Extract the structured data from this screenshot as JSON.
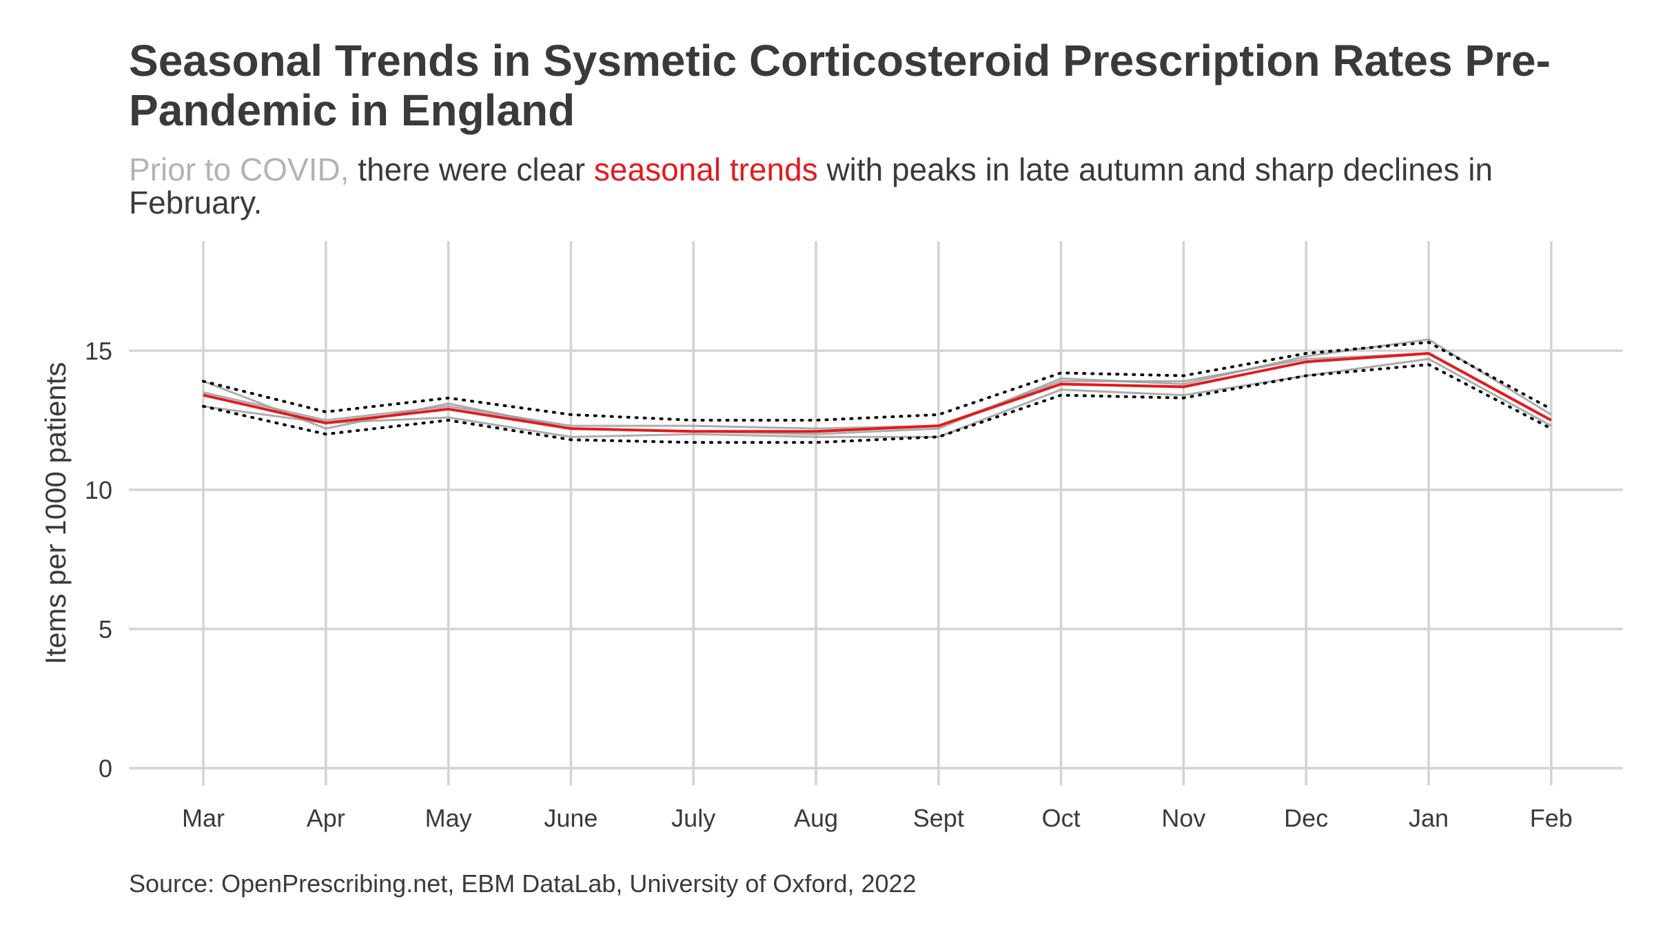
{
  "title": "Seasonal Trends in Sysmetic Corticosteroid Prescription Rates Pre-Pandemic in England",
  "subtitle": {
    "part1": "Prior to COVID,",
    "part2": " there were clear ",
    "part3": "seasonal trends",
    "part4": " with peaks in late autumn and sharp declines in February."
  },
  "caption": "Source: OpenPrescribing.net, EBM DataLab, University of Oxford, 2022",
  "colors": {
    "title": "#3a3a3a",
    "muted": "#b3b3b3",
    "accent": "#e41a1c",
    "grid": "#d3d3d3",
    "band": "#000000",
    "background_series": "#999999"
  },
  "chart_data": {
    "type": "line",
    "title": "Seasonal Trends in Sysmetic Corticosteroid Prescription Rates Pre-Pandemic in England",
    "xlabel": "",
    "ylabel": "Items per 1000 patients",
    "categories": [
      "Mar",
      "Apr",
      "May",
      "June",
      "July",
      "Aug",
      "Sept",
      "Oct",
      "Nov",
      "Dec",
      "Jan",
      "Feb"
    ],
    "ylim": [
      0,
      18
    ],
    "yticks": [
      0,
      5,
      10,
      15
    ],
    "grid": true,
    "legend": "none",
    "series": [
      {
        "style": "solid-grey",
        "values": [
          13.9,
          12.2,
          13.1,
          12.2,
          12.1,
          12.0,
          12.2,
          14.0,
          13.8,
          14.8,
          15.4,
          12.7
        ]
      },
      {
        "style": "solid-grey",
        "values": [
          13.0,
          12.4,
          12.6,
          11.9,
          12.0,
          11.9,
          11.9,
          13.6,
          13.4,
          14.1,
          14.7,
          12.3
        ]
      },
      {
        "style": "solid-grey",
        "values": [
          13.5,
          12.5,
          13.0,
          12.3,
          12.3,
          12.2,
          12.3,
          13.9,
          13.9,
          14.7,
          14.9,
          12.5
        ]
      },
      {
        "style": "dotted-upper",
        "values": [
          13.9,
          12.8,
          13.3,
          12.7,
          12.5,
          12.5,
          12.7,
          14.2,
          14.1,
          14.9,
          15.3,
          12.9
        ]
      },
      {
        "style": "dotted-lower",
        "values": [
          13.0,
          12.0,
          12.5,
          11.8,
          11.7,
          11.7,
          11.9,
          13.4,
          13.3,
          14.1,
          14.5,
          12.2
        ]
      },
      {
        "style": "median-red",
        "values": [
          13.4,
          12.4,
          12.9,
          12.2,
          12.1,
          12.1,
          12.3,
          13.8,
          13.7,
          14.6,
          14.9,
          12.5
        ]
      }
    ]
  }
}
